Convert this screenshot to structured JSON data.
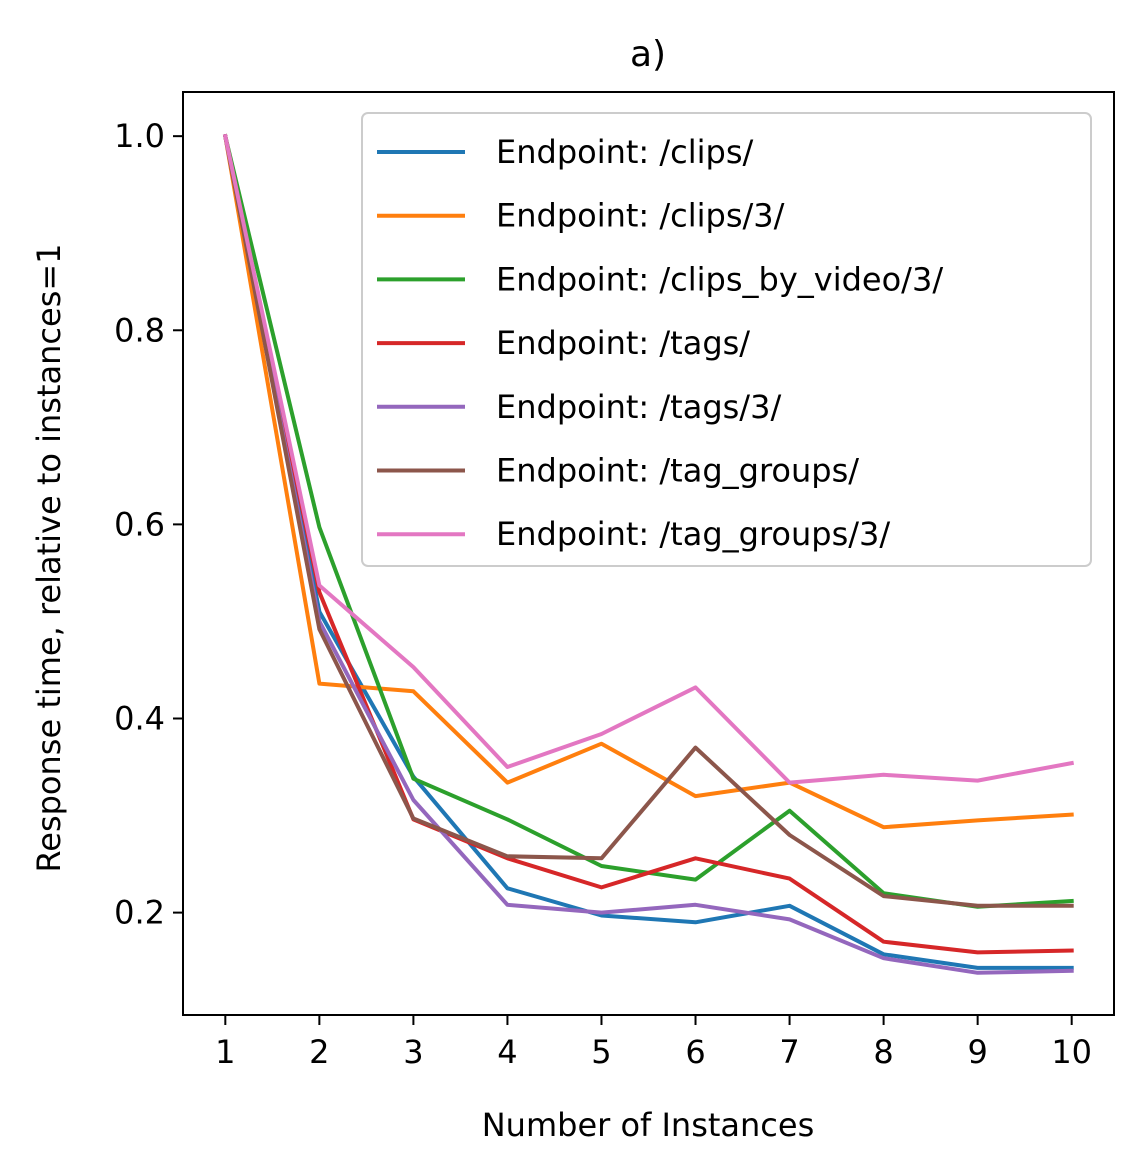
{
  "chart_data": {
    "type": "line",
    "title": "a)",
    "xlabel": "Number of Instances",
    "ylabel": "Response time, relative to instances=1",
    "x": [
      1,
      2,
      3,
      4,
      5,
      6,
      7,
      8,
      9,
      10
    ],
    "xlim": [
      0.55,
      10.45
    ],
    "ylim": [
      0.0945,
      1.0455
    ],
    "xticks": [
      "1",
      "2",
      "3",
      "4",
      "5",
      "6",
      "7",
      "8",
      "9",
      "10"
    ],
    "yticks": [
      {
        "value": 0.2,
        "label": "0.2"
      },
      {
        "value": 0.4,
        "label": "0.4"
      },
      {
        "value": 0.6,
        "label": "0.6"
      },
      {
        "value": 0.8,
        "label": "0.8"
      },
      {
        "value": 1.0,
        "label": "1.0"
      }
    ],
    "legend_position": "top-right",
    "grid": false,
    "series": [
      {
        "name": "Endpoint: /clips/",
        "color": "#1f77b4",
        "values": [
          1.0,
          0.51,
          0.34,
          0.225,
          0.197,
          0.19,
          0.207,
          0.157,
          0.143,
          0.143
        ]
      },
      {
        "name": "Endpoint: /clips/3/",
        "color": "#ff7f0e",
        "values": [
          1.0,
          0.436,
          0.428,
          0.334,
          0.374,
          0.32,
          0.334,
          0.288,
          0.295,
          0.301
        ]
      },
      {
        "name": "Endpoint: /clips_by_video/3/",
        "color": "#2ca02c",
        "values": [
          1.0,
          0.597,
          0.338,
          0.296,
          0.248,
          0.234,
          0.305,
          0.22,
          0.206,
          0.212
        ]
      },
      {
        "name": "Endpoint: /tags/",
        "color": "#d62728",
        "values": [
          1.0,
          0.53,
          0.296,
          0.256,
          0.226,
          0.256,
          0.235,
          0.17,
          0.159,
          0.161
        ]
      },
      {
        "name": "Endpoint: /tags/3/",
        "color": "#9467bd",
        "values": [
          1.0,
          0.5,
          0.316,
          0.208,
          0.2,
          0.208,
          0.193,
          0.153,
          0.138,
          0.14
        ]
      },
      {
        "name": "Endpoint: /tag_groups/",
        "color": "#8c564b",
        "values": [
          1.0,
          0.492,
          0.297,
          0.258,
          0.256,
          0.37,
          0.28,
          0.217,
          0.207,
          0.207
        ]
      },
      {
        "name": "Endpoint: /tag_groups/3/",
        "color": "#e377c2",
        "values": [
          1.0,
          0.537,
          0.453,
          0.35,
          0.384,
          0.432,
          0.334,
          0.342,
          0.336,
          0.354
        ]
      }
    ]
  }
}
